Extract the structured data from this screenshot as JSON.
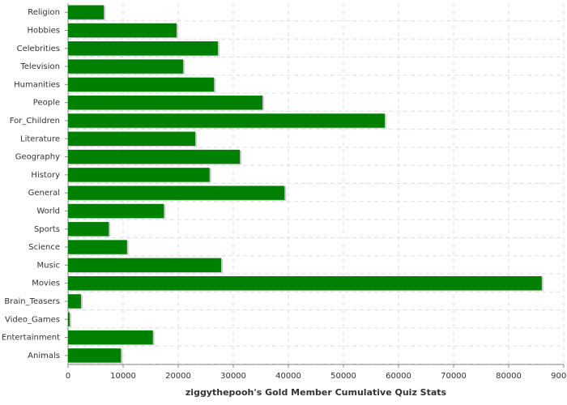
{
  "chart_data": {
    "type": "barh",
    "xlabel": "ziggythepooh's Gold Member Cumulative Quiz Stats",
    "categories": [
      "Religion",
      "Hobbies",
      "Celebrities",
      "Television",
      "Humanities",
      "People",
      "For_Children",
      "Literature",
      "Geography",
      "History",
      "General",
      "World",
      "Sports",
      "Science",
      "Music",
      "Movies",
      "Brain_Teasers",
      "Video_Games",
      "Entertainment",
      "Animals"
    ],
    "values": [
      6500,
      19700,
      27200,
      20900,
      26500,
      35300,
      57500,
      23100,
      31200,
      25700,
      39300,
      17400,
      7400,
      10700,
      27800,
      86000,
      2350,
      300,
      15400,
      9600
    ],
    "color": "#008000",
    "xlim": [
      0,
      90000
    ],
    "xticks": [
      0,
      10000,
      20000,
      30000,
      40000,
      50000,
      60000,
      70000,
      80000,
      90000
    ],
    "grid": true
  }
}
